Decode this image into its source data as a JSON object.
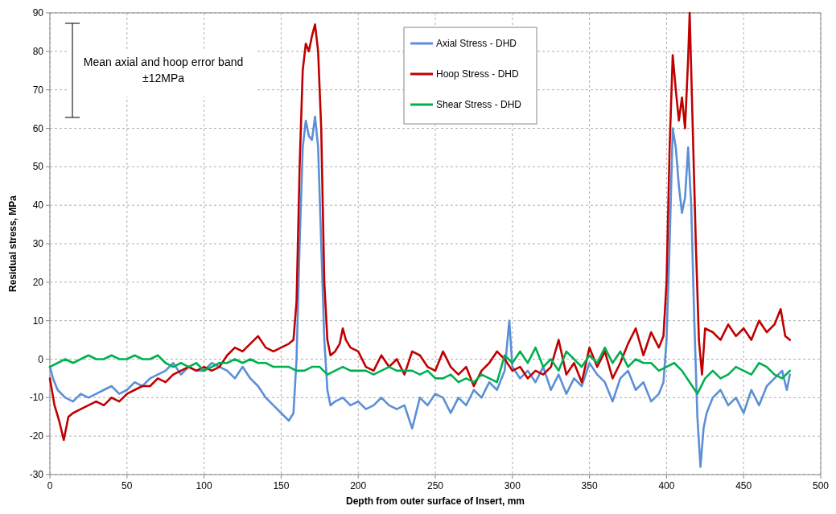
{
  "chart_data": {
    "type": "line",
    "xlabel": "Depth from outer surface of Insert, mm",
    "ylabel": "Residual stress, MPa",
    "annotations": [
      "Mean axial and hoop error band",
      "±12MPa"
    ],
    "xlim": [
      0,
      500
    ],
    "xticks": [
      0,
      50,
      100,
      150,
      200,
      250,
      300,
      350,
      400,
      450,
      500
    ],
    "ylim": [
      -30,
      90
    ],
    "yticks": [
      -30,
      -20,
      -10,
      0,
      10,
      20,
      30,
      40,
      50,
      60,
      70,
      80,
      90
    ],
    "grid": true,
    "legend": "top",
    "marker": "none",
    "line_style": "solid",
    "series": [
      {
        "name": "Axial Stress - DHD",
        "color": "#5b8fd6",
        "x": [
          0,
          2,
          5,
          10,
          15,
          20,
          25,
          30,
          35,
          40,
          45,
          50,
          55,
          60,
          65,
          70,
          75,
          80,
          85,
          90,
          95,
          100,
          105,
          110,
          115,
          120,
          125,
          130,
          135,
          140,
          145,
          150,
          155,
          158,
          160,
          162,
          164,
          166,
          168,
          170,
          172,
          174,
          176,
          178,
          180,
          182,
          185,
          190,
          195,
          200,
          205,
          210,
          215,
          220,
          225,
          230,
          235,
          240,
          245,
          250,
          255,
          260,
          265,
          270,
          275,
          280,
          285,
          290,
          295,
          298,
          300,
          305,
          310,
          315,
          320,
          325,
          330,
          335,
          340,
          345,
          350,
          355,
          360,
          365,
          370,
          375,
          380,
          385,
          390,
          395,
          398,
          400,
          402,
          404,
          406,
          408,
          410,
          412,
          414,
          416,
          418,
          420,
          422,
          424,
          426,
          430,
          435,
          440,
          445,
          450,
          455,
          460,
          465,
          470,
          475,
          478,
          480
        ],
        "values": [
          -2,
          -5,
          -8,
          -10,
          -11,
          -9,
          -10,
          -9,
          -8,
          -7,
          -9,
          -8,
          -6,
          -7,
          -5,
          -4,
          -3,
          -1,
          -4,
          -2,
          -3,
          -3,
          -1,
          -2,
          -3,
          -5,
          -2,
          -5,
          -7,
          -10,
          -12,
          -14,
          -16,
          -14,
          0,
          30,
          55,
          62,
          58,
          57,
          63,
          55,
          30,
          5,
          -8,
          -12,
          -11,
          -10,
          -12,
          -11,
          -13,
          -12,
          -10,
          -12,
          -13,
          -12,
          -18,
          -10,
          -12,
          -9,
          -10,
          -14,
          -10,
          -12,
          -8,
          -10,
          -6,
          -8,
          -3,
          10,
          -2,
          -5,
          -3,
          -6,
          -2,
          -8,
          -4,
          -9,
          -5,
          -7,
          -1,
          -4,
          -6,
          -11,
          -5,
          -3,
          -8,
          -6,
          -11,
          -9,
          -6,
          5,
          30,
          60,
          55,
          45,
          38,
          42,
          55,
          40,
          10,
          -15,
          -28,
          -18,
          -14,
          -10,
          -8,
          -12,
          -10,
          -14,
          -8,
          -12,
          -7,
          -5,
          -3,
          -8,
          -4
        ]
      },
      {
        "name": "Hoop Stress - DHD",
        "color": "#c00000",
        "x": [
          0,
          3,
          6,
          9,
          12,
          15,
          20,
          25,
          30,
          35,
          40,
          45,
          50,
          55,
          60,
          65,
          70,
          75,
          80,
          85,
          90,
          95,
          100,
          105,
          110,
          115,
          120,
          125,
          130,
          135,
          140,
          145,
          150,
          155,
          158,
          160,
          162,
          164,
          166,
          168,
          170,
          172,
          174,
          176,
          178,
          180,
          182,
          185,
          188,
          190,
          192,
          195,
          200,
          205,
          210,
          215,
          220,
          225,
          230,
          235,
          240,
          245,
          250,
          255,
          260,
          265,
          270,
          275,
          280,
          285,
          290,
          295,
          300,
          305,
          310,
          315,
          320,
          325,
          330,
          335,
          340,
          345,
          350,
          355,
          360,
          365,
          370,
          375,
          380,
          385,
          390,
          395,
          398,
          400,
          402,
          404,
          406,
          408,
          410,
          412,
          414,
          415,
          417,
          419,
          421,
          423,
          425,
          430,
          435,
          440,
          445,
          450,
          455,
          460,
          465,
          470,
          474,
          477,
          480
        ],
        "values": [
          -5,
          -12,
          -16,
          -21,
          -15,
          -14,
          -13,
          -12,
          -11,
          -12,
          -10,
          -11,
          -9,
          -8,
          -7,
          -7,
          -5,
          -6,
          -4,
          -3,
          -2,
          -3,
          -2,
          -3,
          -2,
          1,
          3,
          2,
          4,
          6,
          3,
          2,
          3,
          4,
          5,
          15,
          50,
          75,
          82,
          80,
          84,
          87,
          80,
          60,
          20,
          5,
          1,
          2,
          4,
          8,
          5,
          3,
          2,
          -2,
          -3,
          1,
          -2,
          0,
          -4,
          2,
          1,
          -2,
          -3,
          2,
          -2,
          -4,
          -2,
          -7,
          -3,
          -1,
          2,
          0,
          -3,
          -2,
          -5,
          -3,
          -4,
          -2,
          5,
          -4,
          -1,
          -6,
          3,
          -2,
          2,
          -5,
          -1,
          4,
          8,
          1,
          7,
          3,
          6,
          20,
          55,
          79,
          70,
          62,
          68,
          60,
          78,
          90,
          60,
          30,
          5,
          -4,
          8,
          7,
          5,
          9,
          6,
          8,
          5,
          10,
          7,
          9,
          13,
          6,
          5
        ]
      },
      {
        "name": "Shear Stress - DHD",
        "color": "#00b050",
        "x": [
          0,
          5,
          10,
          15,
          20,
          25,
          30,
          35,
          40,
          45,
          50,
          55,
          60,
          65,
          70,
          75,
          80,
          85,
          90,
          95,
          100,
          105,
          110,
          115,
          120,
          125,
          130,
          135,
          140,
          145,
          150,
          155,
          160,
          165,
          170,
          175,
          180,
          185,
          190,
          195,
          200,
          205,
          210,
          215,
          220,
          225,
          230,
          235,
          240,
          245,
          250,
          255,
          260,
          265,
          270,
          275,
          280,
          285,
          290,
          295,
          300,
          305,
          310,
          315,
          320,
          325,
          330,
          335,
          340,
          345,
          350,
          355,
          360,
          365,
          370,
          375,
          380,
          385,
          390,
          395,
          400,
          405,
          410,
          415,
          420,
          425,
          430,
          435,
          440,
          445,
          450,
          455,
          460,
          465,
          470,
          475,
          480
        ],
        "values": [
          -2,
          -1,
          0,
          -1,
          0,
          1,
          0,
          0,
          1,
          0,
          0,
          1,
          0,
          0,
          1,
          -1,
          -2,
          -1,
          -2,
          -1,
          -3,
          -2,
          -1,
          -1,
          0,
          -1,
          0,
          -1,
          -1,
          -2,
          -2,
          -2,
          -3,
          -3,
          -2,
          -2,
          -4,
          -3,
          -2,
          -3,
          -3,
          -3,
          -4,
          -3,
          -2,
          -3,
          -3,
          -3,
          -4,
          -3,
          -5,
          -5,
          -4,
          -6,
          -5,
          -6,
          -4,
          -5,
          -6,
          1,
          -1,
          2,
          -1,
          3,
          -2,
          0,
          -3,
          2,
          0,
          -2,
          1,
          -1,
          3,
          -1,
          2,
          -2,
          0,
          -1,
          -1,
          -3,
          -2,
          -1,
          -3,
          -6,
          -9,
          -5,
          -3,
          -5,
          -4,
          -2,
          -3,
          -4,
          -1,
          -2,
          -4,
          -5,
          -3
        ]
      }
    ]
  }
}
